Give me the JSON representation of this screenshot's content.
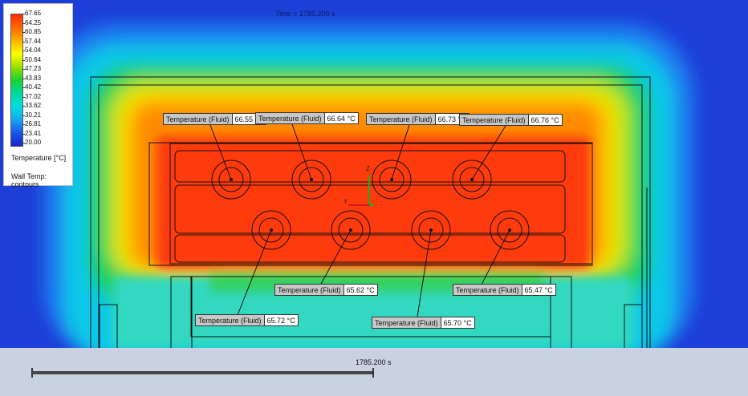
{
  "time_label": "Time = 1785.200 s",
  "legend": {
    "ticks": [
      "67.65",
      "64.25",
      "60.85",
      "57.44",
      "54.04",
      "50.64",
      "47.23",
      "43.83",
      "40.42",
      "37.02",
      "33.62",
      "30.21",
      "26.81",
      "23.41",
      "20.00"
    ],
    "title": "Temperature [°C]",
    "mode": "Wall Temp: contours"
  },
  "probes": [
    {
      "label": "Temperature (Fluid)",
      "value": "66.55 °C"
    },
    {
      "label": "Temperature (Fluid)",
      "value": "66.64 °C"
    },
    {
      "label": "Temperature (Fluid)",
      "value": "66.73 °C"
    },
    {
      "label": "Temperature (Fluid)",
      "value": "66.76 °C"
    },
    {
      "label": "Temperature (Fluid)",
      "value": "65.62 °C"
    },
    {
      "label": "Temperature (Fluid)",
      "value": "65.47 °C"
    },
    {
      "label": "Temperature (Fluid)",
      "value": "65.72 °C"
    },
    {
      "label": "Temperature (Fluid)",
      "value": "65.70 °C"
    }
  ],
  "axes": {
    "z": "Z",
    "y": "Y"
  },
  "timeline": {
    "label": "1785.200 s"
  },
  "colors": {
    "hot": "#ff3a10",
    "cold": "#1d3fd8",
    "background": "#c9d1e3"
  }
}
